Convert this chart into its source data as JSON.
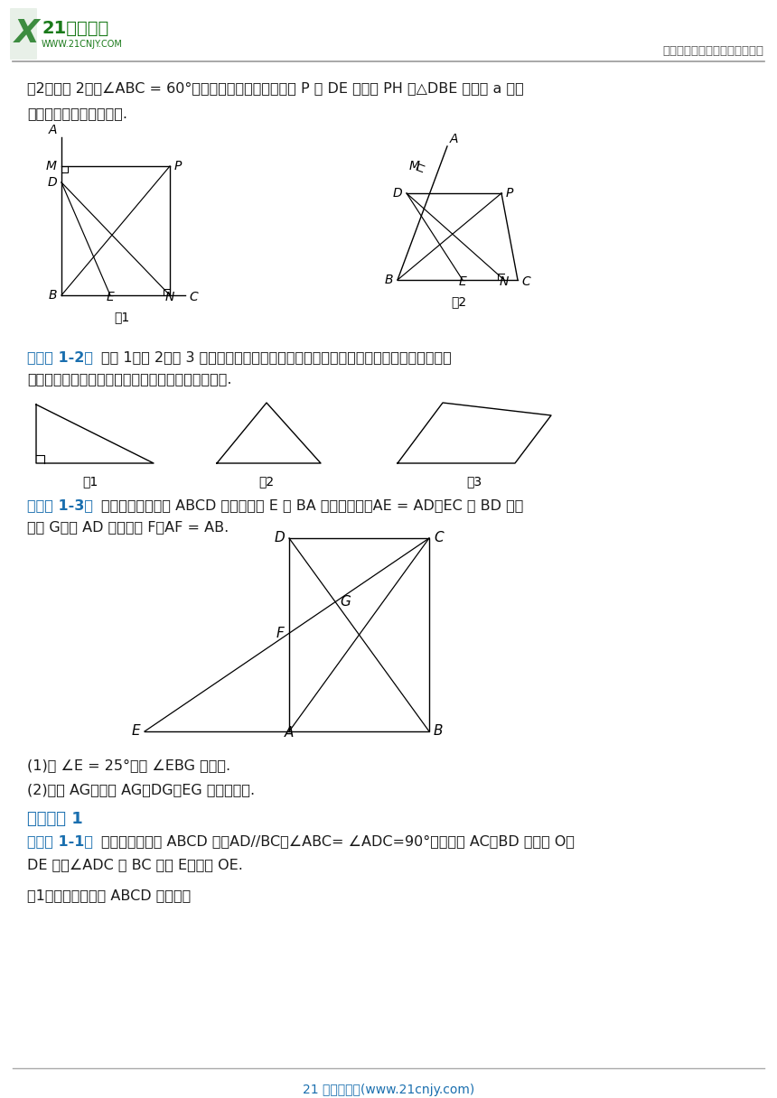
{
  "page_bg": "#ffffff",
  "text_color": "#1a1a1a",
  "blue_color": "#1a6faf",
  "gray_line": "#999999",
  "footer_line": "#aaaaaa",
  "header_right": "中小学教育资源及组卷应用平台",
  "footer_text": "21 世纪教育网(www.21cnjy.com)",
  "logo_main": "21世纪教育",
  "logo_url": "WWW.21CNJY.COM",
  "prob2_line1": "（2）如图 2，当∠ABC = 60°时，其它条件不变，判断点 P 到 DE 的距离 PH 与△DBE 的周长 a 的数",
  "prob2_line2": "量关系，并简要说明理由.",
  "ex12_kw": "【典例 1-2】",
  "ex12_t1": "将图 1、图 2、图 3 中的直角三角形、锐角三角形、四边形纸片分别裁剪成若干块，并",
  "ex12_t2": "分别拼成一个矩形，请画出裁剪线并画出拼接示意图.",
  "ex13_kw": "【典例 1-3】",
  "ex13_t1": "如图，已知四边形 ABCD 是矩形，点 E 在 BA 的延长线上，AE = AD，EC 与 BD 相交",
  "ex13_t2": "于点 G，与 AD 相交于点 F，AF = AB.",
  "ex13_s1": "(1)若 ∠E = 25°，求 ∠EBG 的度数.",
  "ex13_s2": "(2)连接 AG，探究 AG，DG，EG 的数量关系.",
  "section1": "针对训练 1",
  "var11_kw": "【变式 1-1】",
  "var11_t1": "如图，在四边形 ABCD 中，AD//BC，∠ABC= ∠ADC=90°，对角线 AC，BD 交于点 O，",
  "var11_t2": "DE 平分∠ADC 交 BC 于点 E，连接 OE.",
  "var11_s1": "（1）求证：四边形 ABCD 是矩形；"
}
